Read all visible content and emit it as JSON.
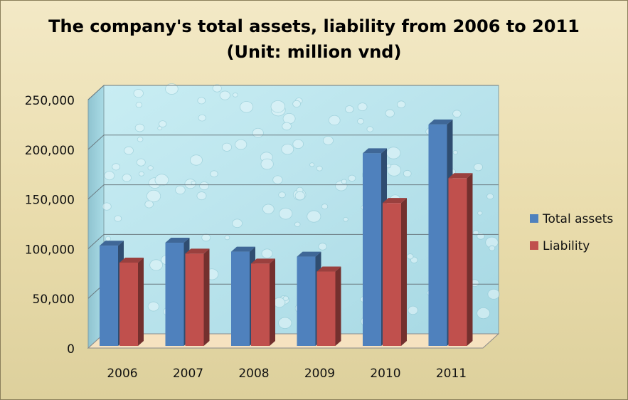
{
  "chart_data": {
    "type": "bar",
    "title_line1": "The company's total assets, liability from 2006 to 2011",
    "title_line2": "(Unit: million vnd)",
    "categories": [
      "2006",
      "2007",
      "2008",
      "2009",
      "2010",
      "2011"
    ],
    "series": [
      {
        "name": "Total assets",
        "color": "#4f81bd",
        "values": [
          103000,
          106000,
          97000,
          92000,
          196000,
          225000
        ]
      },
      {
        "name": "Liability",
        "color": "#c0504d",
        "values": [
          86000,
          95000,
          85000,
          77000,
          146000,
          171000
        ]
      }
    ],
    "ylim": [
      0,
      250000
    ],
    "yticks": [
      0,
      50000,
      100000,
      150000,
      200000,
      250000
    ],
    "ytick_labels": [
      "0",
      "50,000",
      "100,000",
      "150,000",
      "200,000",
      "250,000"
    ],
    "grid": true,
    "legend": "right",
    "colors": {
      "plot_background": "#b9e3ec",
      "page_background": "#ece1b6",
      "gridline": "#6b7a80"
    }
  }
}
